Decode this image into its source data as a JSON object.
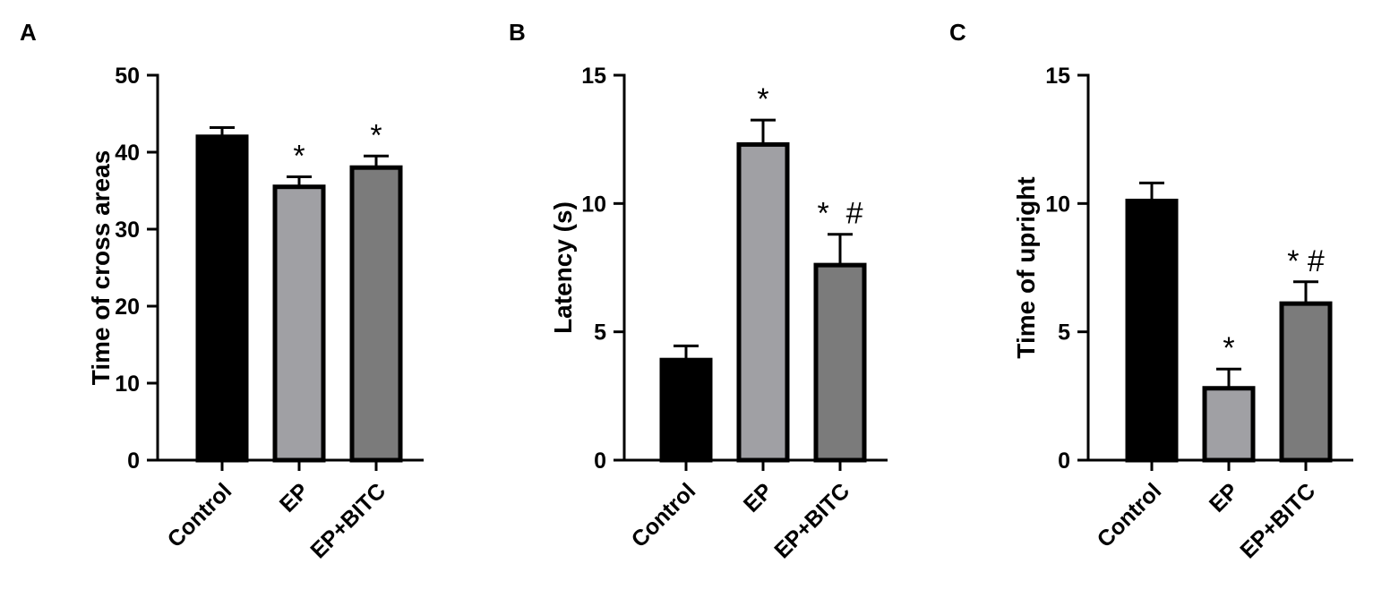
{
  "chart_data": [
    {
      "type": "bar",
      "panel": "A",
      "categories": [
        "Control",
        "EP",
        "EP+BITC"
      ],
      "values": [
        42,
        35.5,
        38
      ],
      "errors": [
        1.2,
        1.3,
        1.5
      ],
      "annotations": [
        "",
        "*",
        "*"
      ],
      "ylabel": "Time of cross areas",
      "ylim": [
        0,
        50
      ],
      "yticks": [
        "0",
        "10",
        "20",
        "30",
        "40",
        "50"
      ],
      "colors": [
        "#000000",
        "#a0a0a4",
        "#7b7b7b"
      ]
    },
    {
      "type": "bar",
      "panel": "B",
      "categories": [
        "Control",
        "EP",
        "EP+BITC"
      ],
      "values": [
        3.9,
        12.3,
        7.6
      ],
      "errors": [
        0.55,
        0.95,
        1.2
      ],
      "annotations": [
        "",
        "*",
        "*  #"
      ],
      "ylabel": "Latency (s)",
      "ylim": [
        0,
        15
      ],
      "yticks": [
        "0",
        "5",
        "10",
        "15"
      ],
      "colors": [
        "#000000",
        "#a0a0a4",
        "#7b7b7b"
      ]
    },
    {
      "type": "bar",
      "panel": "C",
      "categories": [
        "Control",
        "EP",
        "EP+BITC"
      ],
      "values": [
        10.1,
        2.8,
        6.1
      ],
      "errors": [
        0.7,
        0.75,
        0.85
      ],
      "annotations": [
        "",
        "*",
        "* #"
      ],
      "ylabel": "Time of upright",
      "ylim": [
        0,
        15
      ],
      "yticks": [
        "0",
        "5",
        "10",
        "15"
      ],
      "colors": [
        "#000000",
        "#a0a0a4",
        "#7b7b7b"
      ]
    }
  ]
}
